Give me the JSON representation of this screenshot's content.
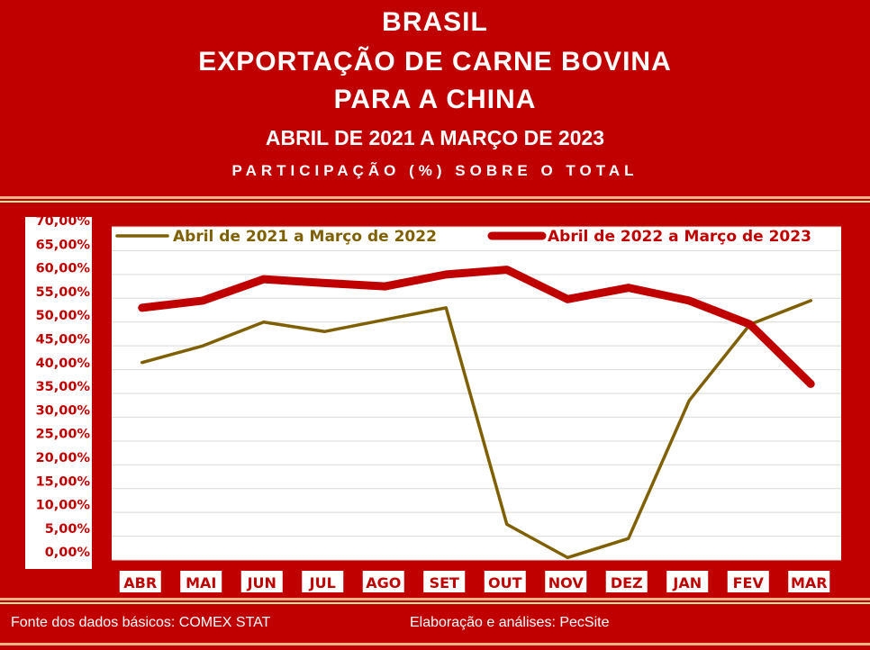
{
  "header": {
    "line1": "BRASIL",
    "line2": "EXPORTAÇÃO DE CARNE BOVINA",
    "line3": "PARA A CHINA",
    "line4": "ABRIL DE 2021 A MARÇO DE 2023",
    "line5": "PARTICIPAÇÃO (%) SOBRE O TOTAL"
  },
  "footer": {
    "source": "Fonte dos dados básicos: COMEX STAT",
    "credit": "Elaboração e análises: PecSite"
  },
  "colors": {
    "background": "#c00000",
    "series1": "#7f6000",
    "series2": "#c00000",
    "plot_bg": "#ffffff",
    "gridline": "#d9d9d9"
  },
  "chart_data": {
    "type": "line",
    "categories": [
      "ABR",
      "MAI",
      "JUN",
      "JUL",
      "AGO",
      "SET",
      "OUT",
      "NOV",
      "DEZ",
      "JAN",
      "FEV",
      "MAR"
    ],
    "series": [
      {
        "name": "Abril de 2021 a Março de 2022",
        "values": [
          41.5,
          45.0,
          50.0,
          48.0,
          50.5,
          53.0,
          7.5,
          0.5,
          4.5,
          33.5,
          49.5,
          54.5
        ]
      },
      {
        "name": "Abril de 2022 a Março de 2023",
        "values": [
          53.0,
          54.5,
          59.0,
          58.2,
          57.5,
          60.0,
          61.0,
          54.8,
          57.2,
          54.5,
          49.5,
          37.0
        ]
      }
    ],
    "yticks": [
      "70,00%",
      "65,00%",
      "60,00%",
      "55,00%",
      "50,00%",
      "45,00%",
      "40,00%",
      "35,00%",
      "30,00%",
      "25,00%",
      "20,00%",
      "15,00%",
      "10,00%",
      "5,00%",
      "0,00%"
    ],
    "ylim": [
      0,
      70
    ],
    "grid": true,
    "legend": "top"
  }
}
